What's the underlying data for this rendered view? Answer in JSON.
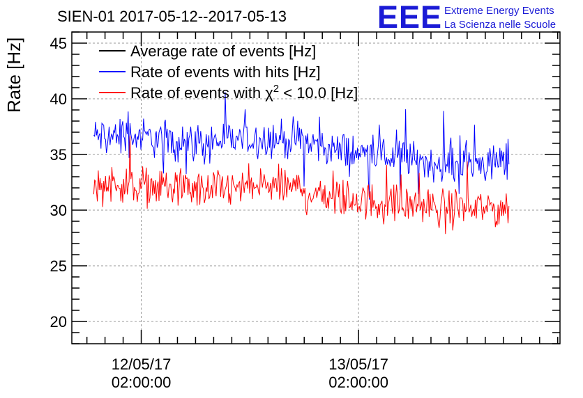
{
  "chart_data": {
    "type": "line",
    "title": "SIEN-01 2017-05-12--2017-05-13",
    "xlabel": "",
    "ylabel": "Rate [Hz]",
    "ylim": [
      18,
      46
    ],
    "yticks": [
      20,
      25,
      30,
      35,
      40,
      45
    ],
    "x_ticks": [
      {
        "date": "12/05/17",
        "time": "02:00:00",
        "value": "2017-05-12T02:00:00"
      },
      {
        "date": "13/05/17",
        "time": "02:00:00",
        "value": "2017-05-13T02:00:00"
      }
    ],
    "xlim": [
      "2017-05-11T18:20:00",
      "2017-05-14T00:15:00"
    ],
    "grid": true,
    "legend_position": "top-left",
    "series": [
      {
        "name": "Average rate of events [Hz]",
        "color": "#000000",
        "x": [],
        "values": []
      },
      {
        "name": "Rate of events with hits [Hz]",
        "color": "#0000ff",
        "x": [
          "2017-05-11T20:45:00",
          "2017-05-12T00:00:00",
          "2017-05-12T04:00:00",
          "2017-05-12T08:00:00",
          "2017-05-12T12:00:00",
          "2017-05-12T16:00:00",
          "2017-05-12T20:00:00",
          "2017-05-13T00:00:00",
          "2017-05-13T04:00:00",
          "2017-05-13T08:00:00",
          "2017-05-13T12:00:00",
          "2017-05-13T16:00:00",
          "2017-05-13T18:40:00"
        ],
        "values": [
          36.6,
          36.7,
          36.4,
          36.1,
          36.3,
          36.5,
          36.2,
          35.3,
          34.9,
          34.5,
          34.1,
          34.2,
          34.3
        ]
      },
      {
        "name": "Rate of events with χ² < 10.0 [Hz]",
        "name_parts": {
          "prefix": "Rate of events with ",
          "symbol": "χ",
          "superscript": "2",
          "suffix": " < 10.0 [Hz]"
        },
        "color": "#ff0000",
        "x": [
          "2017-05-11T20:45:00",
          "2017-05-12T00:00:00",
          "2017-05-12T04:00:00",
          "2017-05-12T08:00:00",
          "2017-05-12T12:00:00",
          "2017-05-12T16:00:00",
          "2017-05-12T20:00:00",
          "2017-05-13T00:00:00",
          "2017-05-13T04:00:00",
          "2017-05-13T08:00:00",
          "2017-05-13T12:00:00",
          "2017-05-13T16:00:00",
          "2017-05-13T18:40:00"
        ],
        "values": [
          32.3,
          32.4,
          32.1,
          31.8,
          31.9,
          32.2,
          31.9,
          31.1,
          30.7,
          30.4,
          30.2,
          30.2,
          30.3
        ]
      }
    ]
  },
  "logo": {
    "text": "EEE",
    "line1": "Extreme Energy Events",
    "line2": "La Scienza nelle Scuole",
    "color": "#1b1bd6"
  }
}
